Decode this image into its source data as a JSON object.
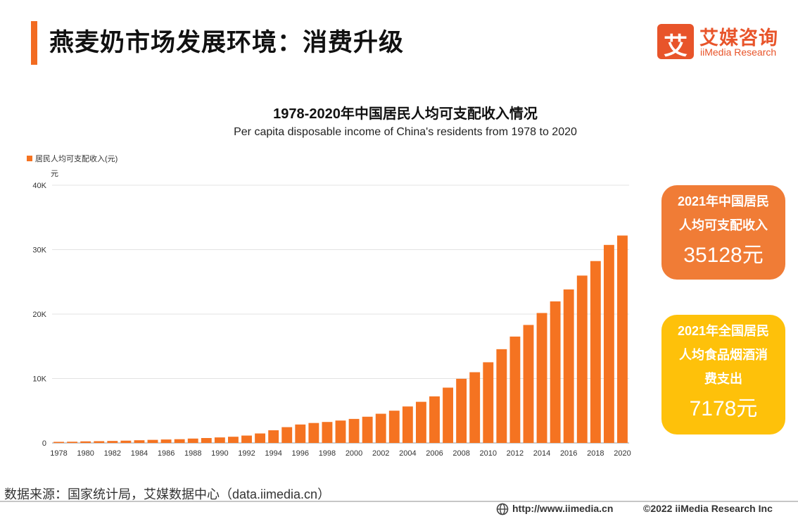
{
  "header": {
    "title": "燕麦奶市场发展环境：消费升级",
    "logo_cn": "艾媒咨询",
    "logo_en": "iiMedia Research",
    "logo_mark": "艾"
  },
  "chart_data": {
    "type": "bar",
    "title": "1978-2020年中国居民人均可支配收入情况",
    "subtitle": "Per capita disposable income of  China's residents from 1978 to 2020",
    "legend": "居民人均可支配收入(元)",
    "legend_position": "top-left",
    "ylabel": "元",
    "ylim": [
      0,
      40000
    ],
    "yticks": [
      "0",
      "10K",
      "20K",
      "30K",
      "40K"
    ],
    "grid": true,
    "bar_color": "#f57321",
    "categories": [
      1978,
      1979,
      1980,
      1981,
      1982,
      1983,
      1984,
      1985,
      1986,
      1987,
      1988,
      1989,
      1990,
      1991,
      1992,
      1993,
      1994,
      1995,
      1996,
      1997,
      1998,
      1999,
      2000,
      2001,
      2002,
      2003,
      2004,
      2005,
      2006,
      2007,
      2008,
      2009,
      2010,
      2011,
      2012,
      2013,
      2014,
      2015,
      2016,
      2017,
      2018,
      2019,
      2020
    ],
    "xtick_labels": [
      "1978",
      "1980",
      "1982",
      "1984",
      "1986",
      "1988",
      "1990",
      "1992",
      "1994",
      "1996",
      "1998",
      "2000",
      "2002",
      "2004",
      "2006",
      "2008",
      "2010",
      "2012",
      "2014",
      "2016",
      "2018",
      "2020"
    ],
    "values": [
      171,
      190,
      247,
      275,
      309,
      356,
      419,
      479,
      537,
      581,
      681,
      764,
      858,
      964,
      1145,
      1473,
      1967,
      2452,
      2862,
      3098,
      3256,
      3477,
      3729,
      4070,
      4532,
      5007,
      5661,
      6385,
      7229,
      8584,
      9957,
      10977,
      12520,
      14551,
      16510,
      18311,
      20167,
      21966,
      23821,
      25974,
      28228,
      30733,
      32189
    ]
  },
  "cards": [
    {
      "label_lines": [
        "2021年中国居民",
        "人均可支配收入"
      ],
      "value": "35128元",
      "color": "#f07c36"
    },
    {
      "label_lines": [
        "2021年全国居民",
        "人均食品烟酒消",
        "费支出"
      ],
      "value": "7178元",
      "color": "#fec10a"
    }
  ],
  "footer": {
    "source": "数据来源：国家统计局，艾媒数据中心（data.iimedia.cn）",
    "url": "http://www.iimedia.cn",
    "copyright": "©2022  iiMedia Research  Inc"
  }
}
